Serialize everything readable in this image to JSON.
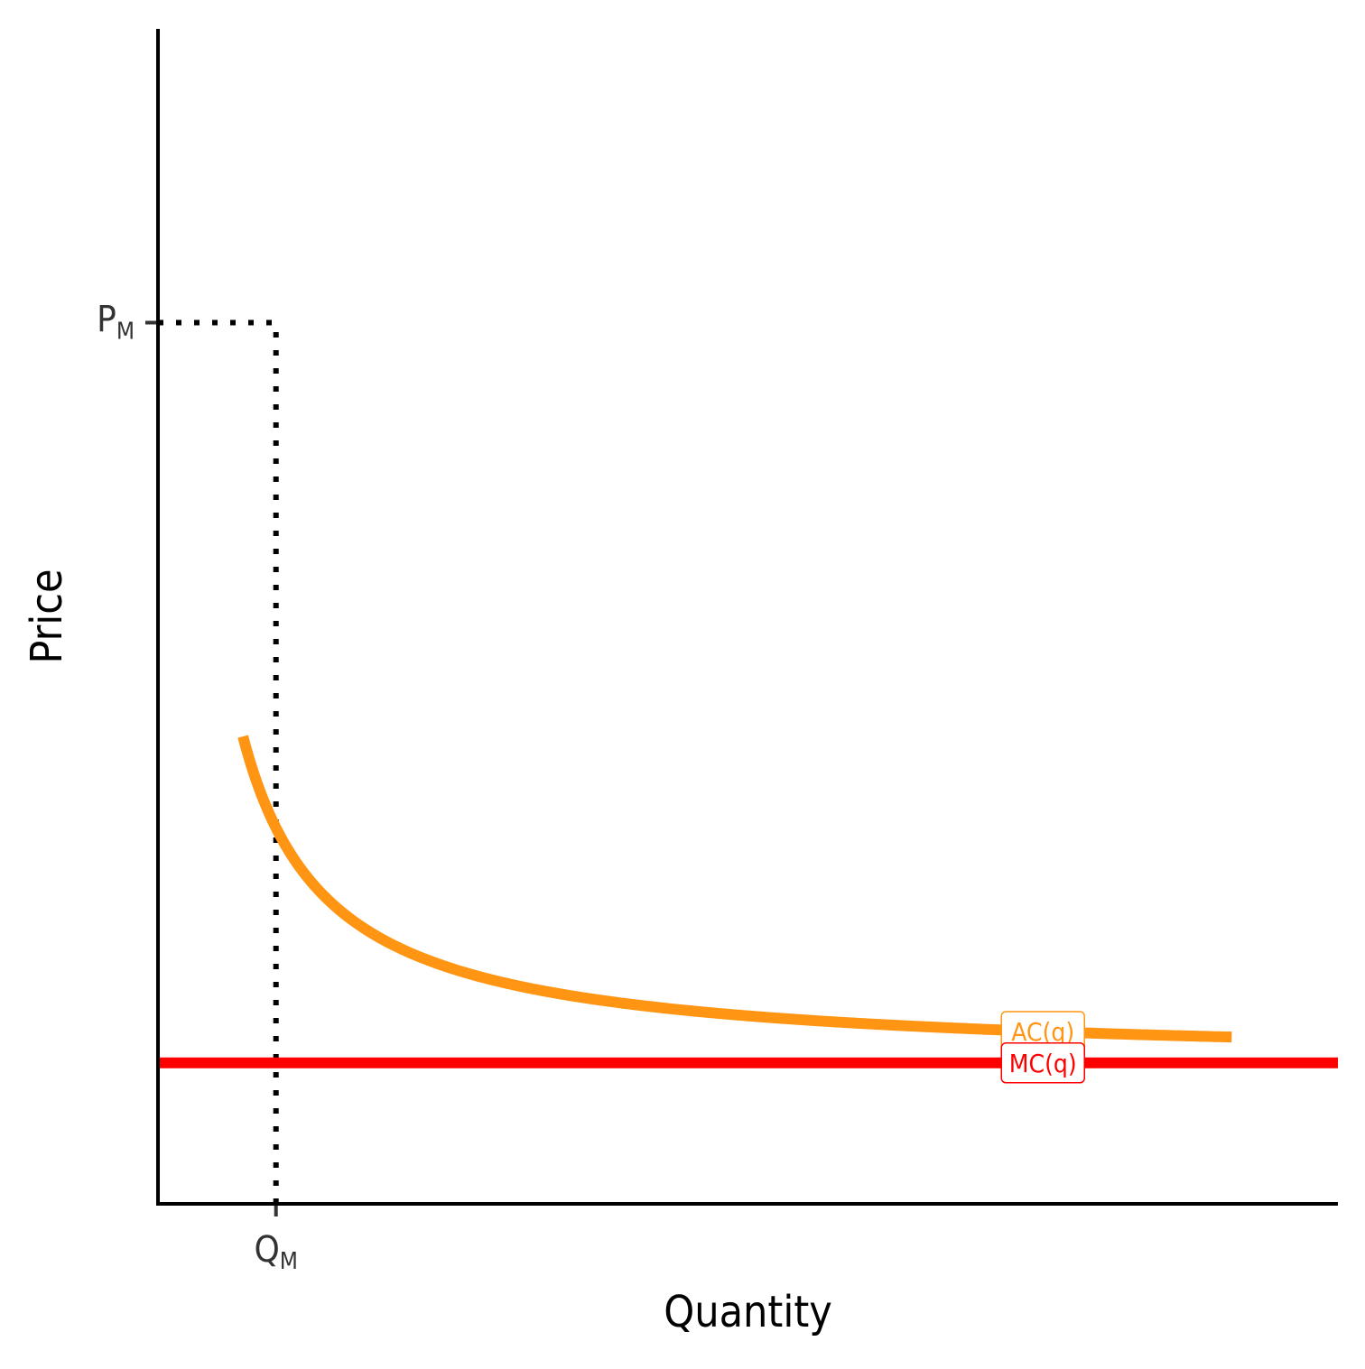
{
  "chart_data": {
    "type": "line",
    "title": "",
    "xlabel": "Quantity",
    "ylabel": "Price",
    "xlim": [
      0,
      10
    ],
    "ylim": [
      0,
      10
    ],
    "grid": false,
    "legend": "none",
    "x_ticks": [
      {
        "value": 1,
        "label": "Q",
        "sub": "M"
      }
    ],
    "y_ticks": [
      {
        "value": 7.5,
        "label": "P",
        "sub": "M"
      }
    ],
    "series": [
      {
        "name": "AC(q)",
        "function": "ac",
        "fc": 2,
        "mc": 1.2,
        "x_range": [
          0.72,
          9.1
        ],
        "color": "#FF9512",
        "label_x": 7.5
      },
      {
        "name": "MC(q)",
        "function": "constant",
        "value": 1.2,
        "x_range": [
          0,
          10
        ],
        "color": "#FF0000",
        "label_x": 7.5
      }
    ],
    "reference_lines": [
      {
        "type": "horizontal",
        "y": 7.5,
        "x_range": [
          0,
          1
        ],
        "style": "dotted"
      },
      {
        "type": "vertical",
        "x": 1,
        "y_range": [
          0,
          7.5
        ],
        "style": "dotted"
      }
    ]
  }
}
